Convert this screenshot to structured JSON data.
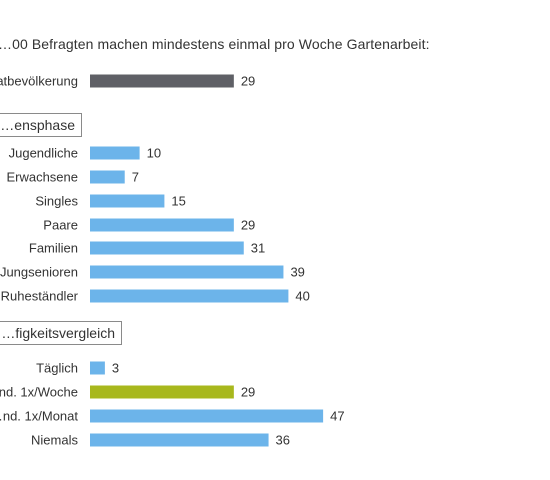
{
  "chart_data": {
    "type": "bar",
    "orientation": "horizontal",
    "title": "…00 Befragten machen mindestens einmal pro Woche Gartenarbeit:",
    "xlabel": "",
    "ylabel": "",
    "xlim": [
      0,
      50
    ],
    "grid": false,
    "colors": {
      "total": "#5f6066",
      "default": "#6cb4ea",
      "highlight": "#a8b81d",
      "section_border": "#8a8a8a"
    },
    "total": {
      "label": "…atbevölkerung",
      "value": 29
    },
    "sections": [
      {
        "title": "…ensphase",
        "categories": [
          "Jugendliche",
          "Erwachsene",
          "Singles",
          "Paare",
          "Familien",
          "Jungsenioren",
          "Ruheständler"
        ],
        "values": [
          10,
          7,
          15,
          29,
          31,
          39,
          40
        ]
      },
      {
        "title": "…figkeitsvergleich",
        "categories": [
          "Täglich",
          "…nd. 1x/Woche",
          "…nd. 1x/Monat",
          "Niemals"
        ],
        "values": [
          3,
          29,
          47,
          36
        ],
        "highlight_index": 1
      }
    ]
  }
}
